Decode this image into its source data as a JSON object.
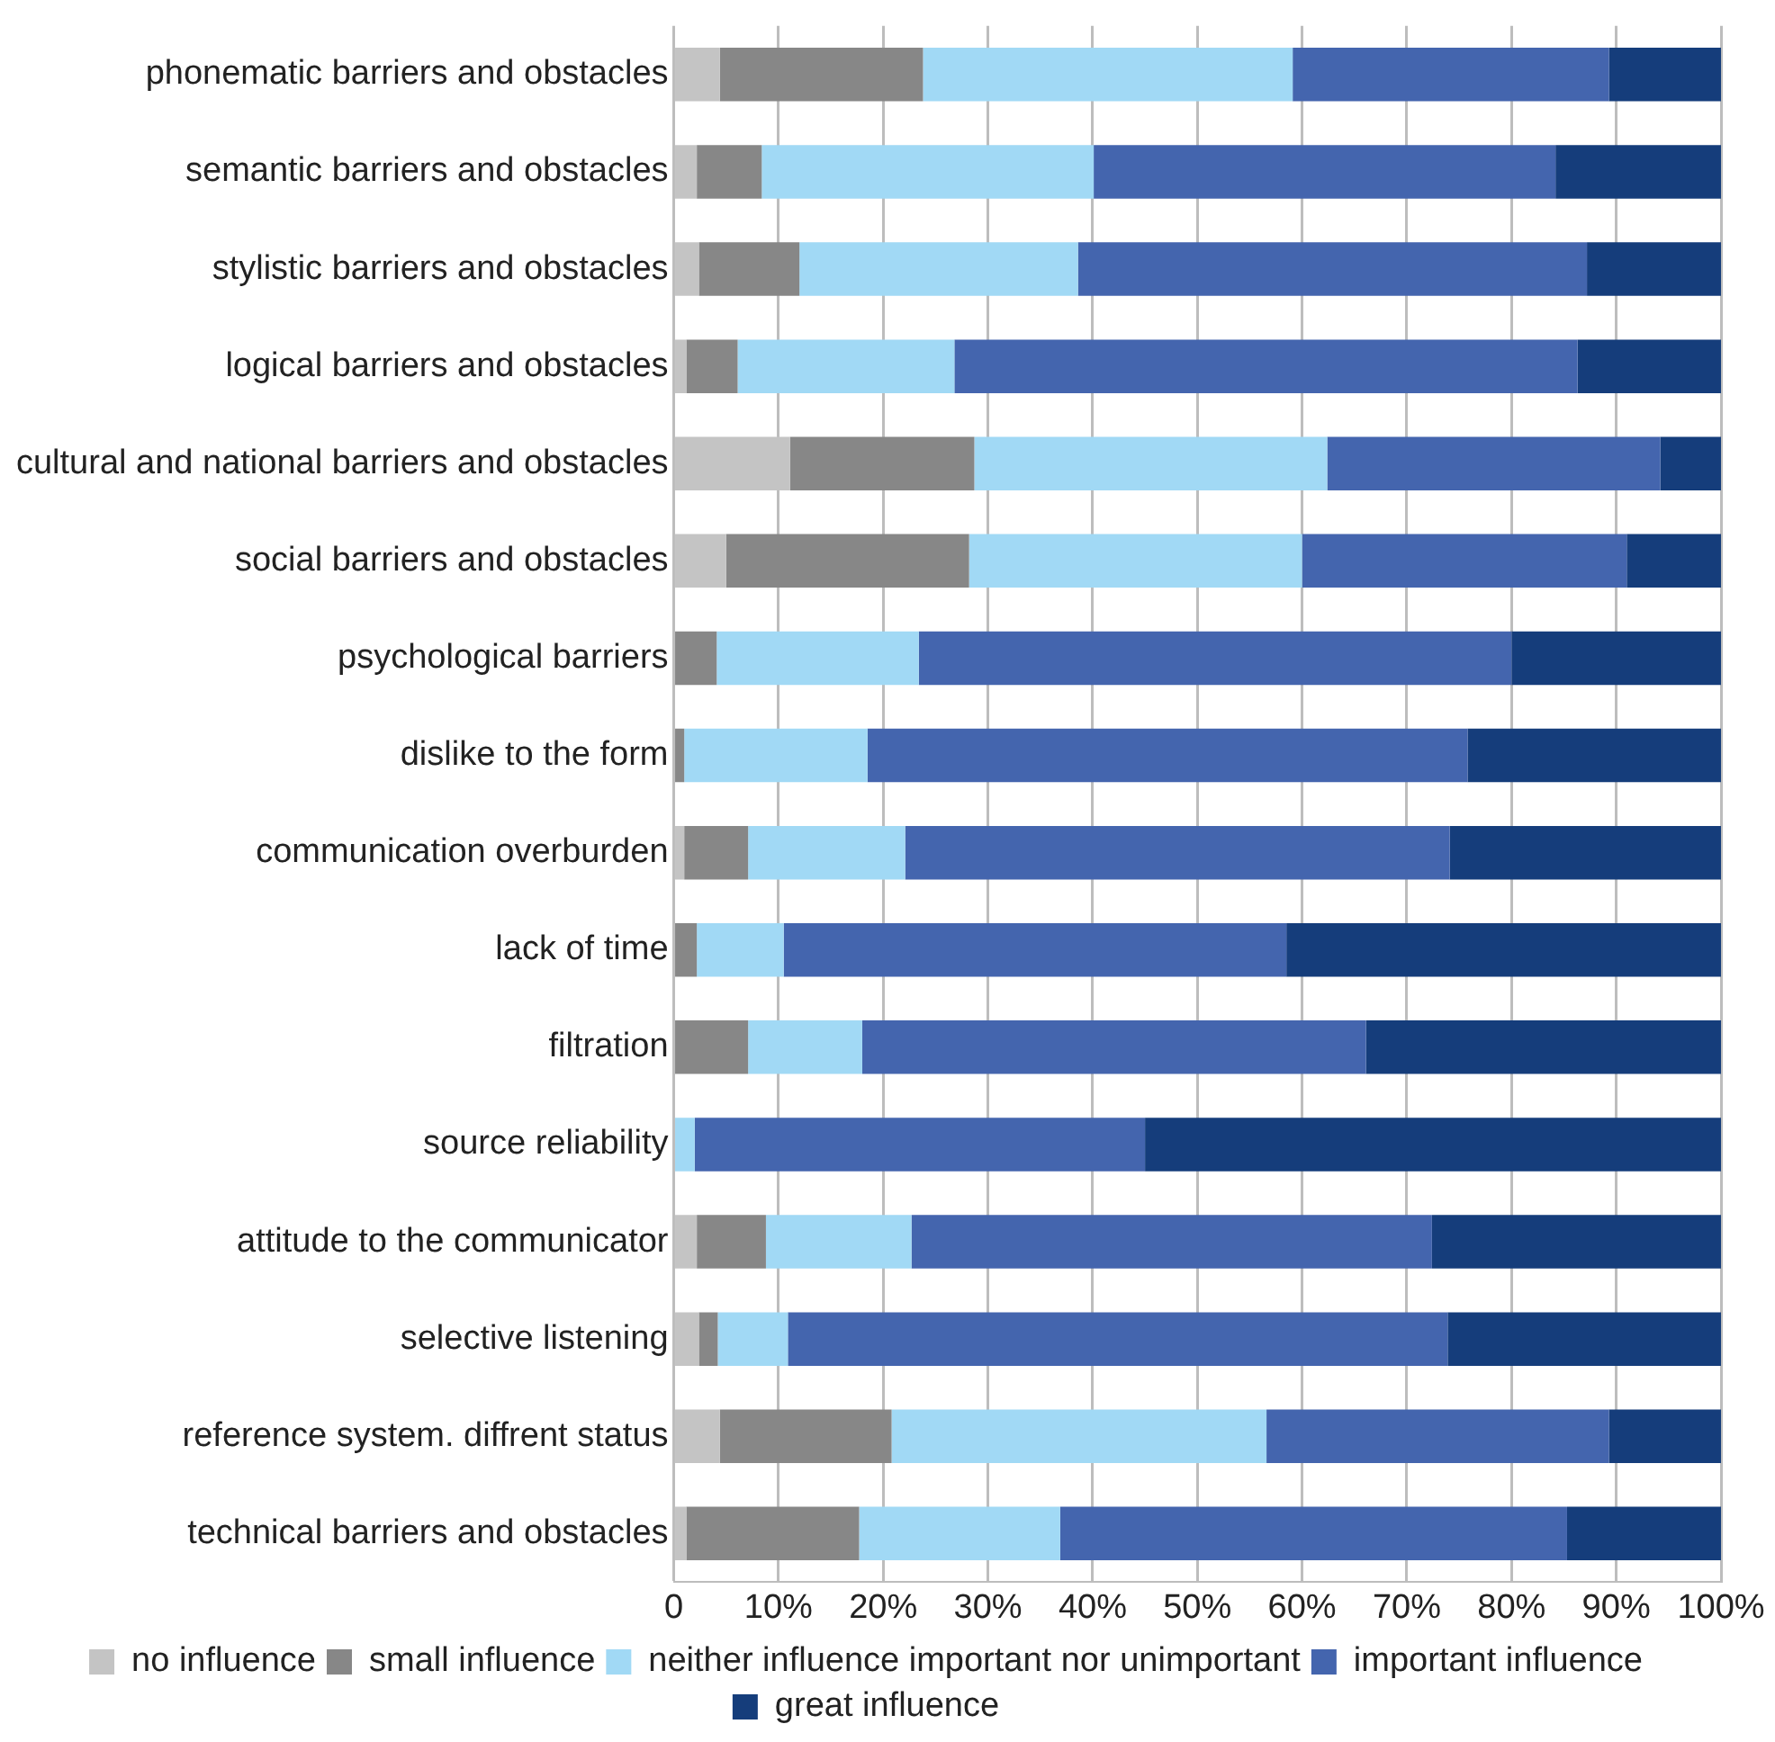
{
  "chart_data": {
    "type": "bar",
    "orientation": "horizontal",
    "stacked": true,
    "categories": [
      "phonematic barriers and obstacles",
      "semantic barriers and obstacles",
      "stylistic barriers and obstacles",
      "logical barriers and obstacles",
      "cultural and national barriers and obstacles",
      "social barriers and obstacles",
      "psychological barriers",
      "dislike to the form",
      "communication overburden",
      "lack of time",
      "filtration",
      "source reliability",
      "attitude to the communicator",
      "selective listening",
      "reference system. diffrent status",
      "technical barriers and obstacles"
    ],
    "series": [
      {
        "name": "no influence",
        "color": "#c4c4c4",
        "values": [
          4.4,
          2.2,
          2.4,
          1.2,
          11.1,
          5.0,
          0,
          0,
          1.0,
          0,
          0,
          0,
          2.2,
          2.4,
          4.4,
          1.2
        ]
      },
      {
        "name": "small influence",
        "color": "#878787",
        "values": [
          19.4,
          6.2,
          9.6,
          4.9,
          17.6,
          23.2,
          4.1,
          1.0,
          6.1,
          2.2,
          7.1,
          0,
          6.6,
          1.8,
          16.4,
          16.5
        ]
      },
      {
        "name": "neither influence important nor unimportant",
        "color": "#a1d9f5",
        "values": [
          35.3,
          31.7,
          26.6,
          20.7,
          33.7,
          31.8,
          19.3,
          17.5,
          15.0,
          8.3,
          10.9,
          2.0,
          13.9,
          6.7,
          35.8,
          19.2
        ]
      },
      {
        "name": "important influence",
        "color": "#4465ae",
        "values": [
          30.2,
          44.1,
          48.6,
          59.5,
          31.8,
          31.0,
          56.6,
          57.3,
          52.0,
          48.0,
          48.1,
          43.0,
          49.7,
          63.0,
          32.7,
          48.4
        ]
      },
      {
        "name": "great influence",
        "color": "#153d7b",
        "values": [
          10.7,
          15.8,
          12.8,
          13.7,
          5.8,
          9.0,
          20.0,
          24.2,
          25.9,
          41.5,
          33.9,
          55.0,
          27.6,
          26.1,
          10.7,
          14.7
        ]
      }
    ],
    "xlim": [
      0,
      100
    ],
    "xticks": [
      {
        "value": 0,
        "label": "0"
      },
      {
        "value": 10,
        "label": "10%"
      },
      {
        "value": 20,
        "label": "20%"
      },
      {
        "value": 30,
        "label": "30%"
      },
      {
        "value": 40,
        "label": "40%"
      },
      {
        "value": 50,
        "label": "50%"
      },
      {
        "value": 60,
        "label": "60%"
      },
      {
        "value": 70,
        "label": "70%"
      },
      {
        "value": 80,
        "label": "80%"
      },
      {
        "value": 90,
        "label": "90%"
      },
      {
        "value": 100,
        "label": "100%"
      }
    ],
    "grid": "x",
    "legend": "bottom"
  }
}
